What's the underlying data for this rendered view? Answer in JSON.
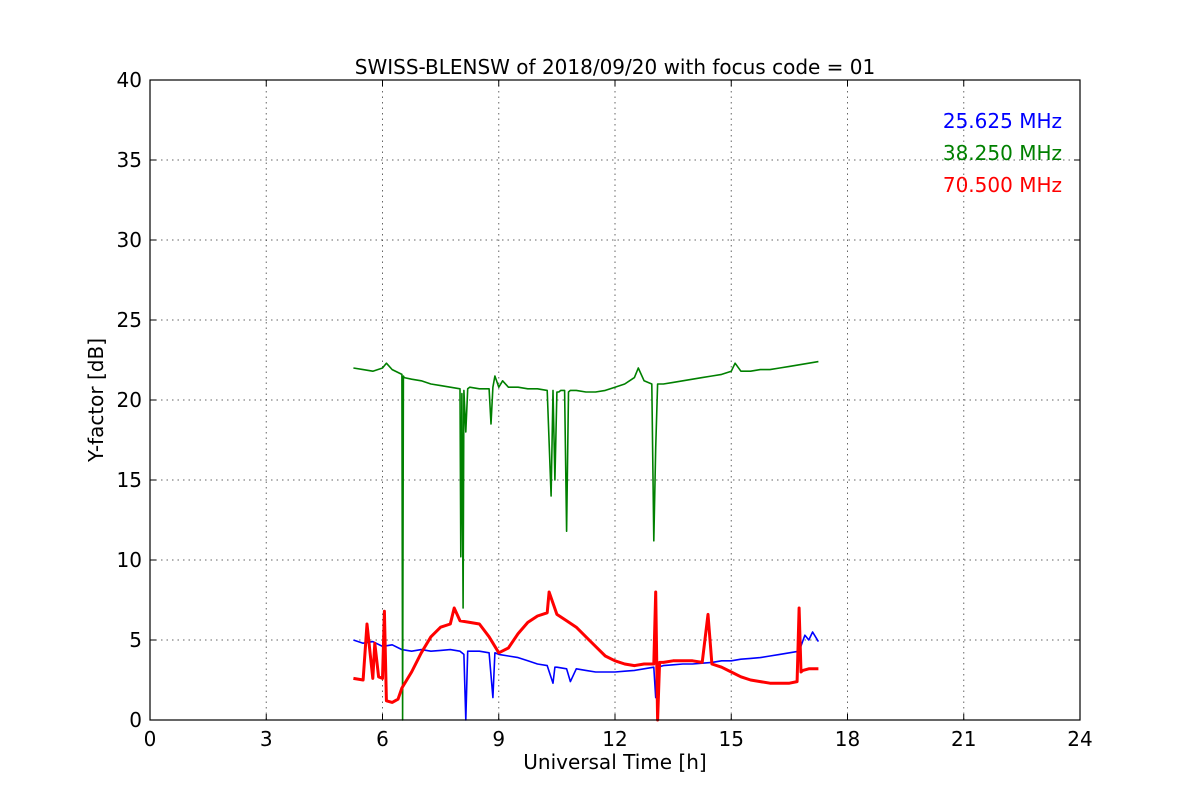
{
  "chart_data": {
    "type": "line",
    "title": "SWISS-BLENSW of 2018/09/20 with focus code = 01",
    "xlabel": "Universal Time [h]",
    "ylabel": "Y-factor [dB]",
    "xlim": [
      0,
      24
    ],
    "ylim": [
      0,
      40
    ],
    "xticks": [
      0,
      3,
      6,
      9,
      12,
      15,
      18,
      21,
      24
    ],
    "yticks": [
      0,
      5,
      10,
      15,
      20,
      25,
      30,
      35,
      40
    ],
    "grid": true,
    "legend_position": "top-right",
    "series": [
      {
        "name": "25.625 MHz",
        "color": "#0000ff",
        "x": [
          5.25,
          5.5,
          5.75,
          6.0,
          6.25,
          6.5,
          6.75,
          7.0,
          7.25,
          7.5,
          7.75,
          8.0,
          8.1,
          8.15,
          8.2,
          8.5,
          8.75,
          8.85,
          8.9,
          9.0,
          9.25,
          9.5,
          9.75,
          10.0,
          10.25,
          10.4,
          10.45,
          10.5,
          10.75,
          10.85,
          11.0,
          11.25,
          11.5,
          11.75,
          12.0,
          12.25,
          12.5,
          12.75,
          13.0,
          13.05,
          13.1,
          13.25,
          13.5,
          13.75,
          14.0,
          14.25,
          14.5,
          14.75,
          15.0,
          15.25,
          15.5,
          15.75,
          16.0,
          16.25,
          16.5,
          16.75,
          16.9,
          17.0,
          17.1,
          17.25
        ],
        "y": [
          5.0,
          4.8,
          4.9,
          4.6,
          4.7,
          4.4,
          4.3,
          4.4,
          4.3,
          4.35,
          4.4,
          4.3,
          4.1,
          0.0,
          4.3,
          4.3,
          4.2,
          1.4,
          4.2,
          4.1,
          4.0,
          3.9,
          3.7,
          3.5,
          3.4,
          2.3,
          3.3,
          3.3,
          3.2,
          2.4,
          3.2,
          3.1,
          3.0,
          3.0,
          3.0,
          3.05,
          3.1,
          3.2,
          3.3,
          1.4,
          3.3,
          3.4,
          3.45,
          3.5,
          3.5,
          3.55,
          3.6,
          3.7,
          3.7,
          3.8,
          3.85,
          3.9,
          4.0,
          4.1,
          4.2,
          4.3,
          5.3,
          5.0,
          5.5,
          4.9
        ]
      },
      {
        "name": "38.250 MHz",
        "color": "#008000",
        "x": [
          5.25,
          5.5,
          5.75,
          6.0,
          6.1,
          6.25,
          6.5,
          6.52,
          6.54,
          6.56,
          6.75,
          7.0,
          7.25,
          7.5,
          7.75,
          8.0,
          8.02,
          8.05,
          8.08,
          8.1,
          8.15,
          8.2,
          8.25,
          8.5,
          8.75,
          8.8,
          8.85,
          8.9,
          9.0,
          9.1,
          9.25,
          9.5,
          9.75,
          10.0,
          10.25,
          10.35,
          10.4,
          10.45,
          10.5,
          10.55,
          10.6,
          10.7,
          10.75,
          10.8,
          10.85,
          11.0,
          11.25,
          11.5,
          11.75,
          12.0,
          12.25,
          12.5,
          12.6,
          12.75,
          12.95,
          13.0,
          13.05,
          13.1,
          13.25,
          13.5,
          13.75,
          14.0,
          14.25,
          14.5,
          14.75,
          15.0,
          15.1,
          15.25,
          15.5,
          15.75,
          16.0,
          16.25,
          16.5,
          16.75,
          17.0,
          17.25
        ],
        "y": [
          22.0,
          21.9,
          21.8,
          22.0,
          22.3,
          21.9,
          21.6,
          0.0,
          21.5,
          21.4,
          21.3,
          21.2,
          21.0,
          20.9,
          20.8,
          20.7,
          10.2,
          20.4,
          7.0,
          20.6,
          18.0,
          20.7,
          20.8,
          20.7,
          20.7,
          18.5,
          20.8,
          21.5,
          20.8,
          21.2,
          20.8,
          20.8,
          20.7,
          20.7,
          20.6,
          14.0,
          20.6,
          15.0,
          20.5,
          20.5,
          20.6,
          20.6,
          11.8,
          20.5,
          20.6,
          20.6,
          20.5,
          20.5,
          20.6,
          20.8,
          21.0,
          21.4,
          22.0,
          21.2,
          21.0,
          11.2,
          17.0,
          21.0,
          21.0,
          21.1,
          21.2,
          21.3,
          21.4,
          21.5,
          21.6,
          21.8,
          22.3,
          21.8,
          21.8,
          21.9,
          21.9,
          22.0,
          22.1,
          22.2,
          22.3,
          22.4
        ]
      },
      {
        "name": "70.500 MHz",
        "color": "#ff0000",
        "x": [
          5.25,
          5.5,
          5.6,
          5.75,
          5.8,
          5.9,
          6.0,
          6.05,
          6.1,
          6.25,
          6.4,
          6.5,
          6.75,
          7.0,
          7.25,
          7.5,
          7.75,
          7.85,
          8.0,
          8.25,
          8.5,
          8.75,
          9.0,
          9.25,
          9.5,
          9.75,
          10.0,
          10.25,
          10.3,
          10.5,
          10.75,
          11.0,
          11.25,
          11.5,
          11.75,
          12.0,
          12.25,
          12.5,
          12.75,
          13.0,
          13.05,
          13.1,
          13.15,
          13.25,
          13.5,
          13.75,
          14.0,
          14.25,
          14.4,
          14.5,
          14.75,
          15.0,
          15.25,
          15.5,
          15.75,
          16.0,
          16.25,
          16.5,
          16.7,
          16.75,
          16.8,
          16.85,
          17.0,
          17.25
        ],
        "y": [
          2.6,
          2.5,
          6.0,
          2.6,
          4.8,
          2.7,
          2.6,
          6.8,
          1.2,
          1.1,
          1.3,
          2.0,
          3.0,
          4.2,
          5.2,
          5.8,
          6.0,
          7.0,
          6.2,
          6.1,
          6.0,
          5.2,
          4.2,
          4.5,
          5.4,
          6.1,
          6.5,
          6.7,
          8.0,
          6.6,
          6.2,
          5.8,
          5.2,
          4.6,
          4.0,
          3.7,
          3.5,
          3.4,
          3.5,
          3.5,
          8.0,
          0.0,
          3.6,
          3.6,
          3.7,
          3.7,
          3.7,
          3.6,
          6.6,
          3.5,
          3.3,
          3.0,
          2.7,
          2.5,
          2.4,
          2.3,
          2.3,
          2.3,
          2.4,
          7.0,
          3.0,
          3.1,
          3.2,
          3.2
        ]
      }
    ]
  }
}
